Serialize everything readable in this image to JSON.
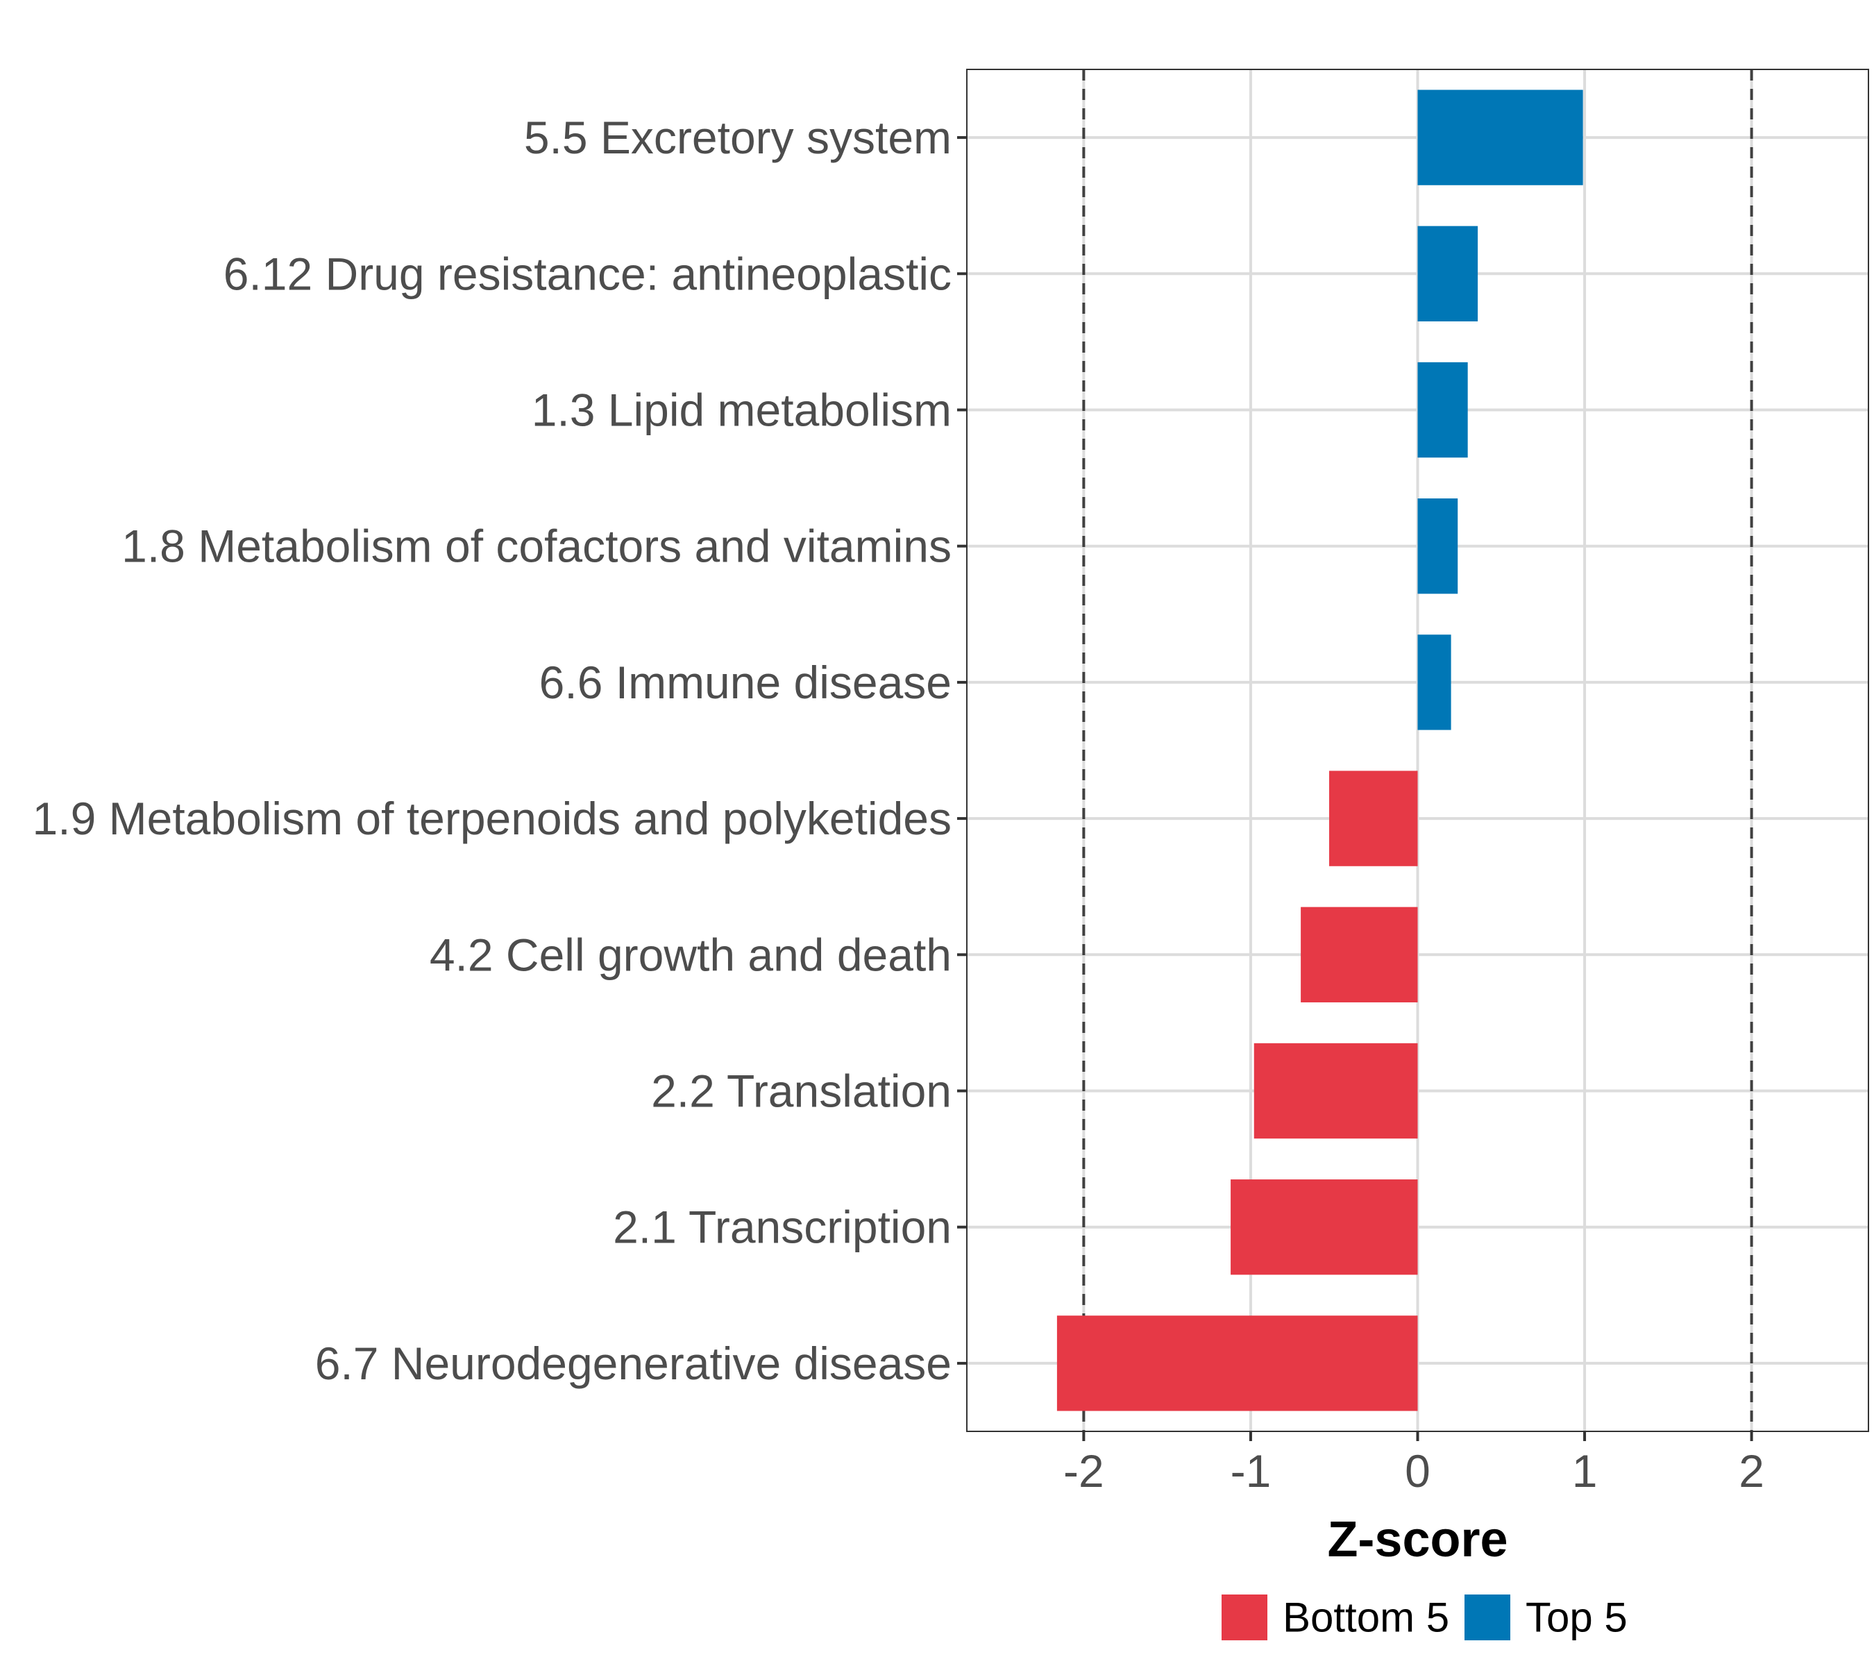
{
  "chart_data": {
    "type": "bar",
    "orientation": "horizontal",
    "title": "",
    "xlabel": "Z-score",
    "ylabel": "",
    "xlim": [
      -2.7,
      2.7
    ],
    "xticks": [
      -2,
      -1,
      0,
      1,
      2
    ],
    "xtick_labels": [
      "-2",
      "-1",
      "0",
      "1",
      "2"
    ],
    "reference_lines": [
      -2,
      2
    ],
    "grid": true,
    "categories": [
      "5.5 Excretory system",
      "6.12 Drug resistance: antineoplastic",
      "1.3 Lipid metabolism",
      "1.8 Metabolism of cofactors and vitamins",
      "6.6 Immune disease",
      "1.9 Metabolism of terpenoids and polyketides",
      "4.2 Cell growth and death",
      "2.2 Translation",
      "2.1 Transcription",
      "6.7 Neurodegenerative disease"
    ],
    "values": [
      0.99,
      0.36,
      0.3,
      0.24,
      0.2,
      -0.53,
      -0.7,
      -0.98,
      -1.12,
      -2.16
    ],
    "groups": [
      "Top 5",
      "Top 5",
      "Top 5",
      "Top 5",
      "Top 5",
      "Bottom 5",
      "Bottom 5",
      "Bottom 5",
      "Bottom 5",
      "Bottom 5"
    ],
    "legend": {
      "placement": "bottom",
      "entries": [
        {
          "label": "Bottom 5",
          "color": "#e63946"
        },
        {
          "label": "Top 5",
          "color": "#0077b6"
        }
      ]
    }
  }
}
